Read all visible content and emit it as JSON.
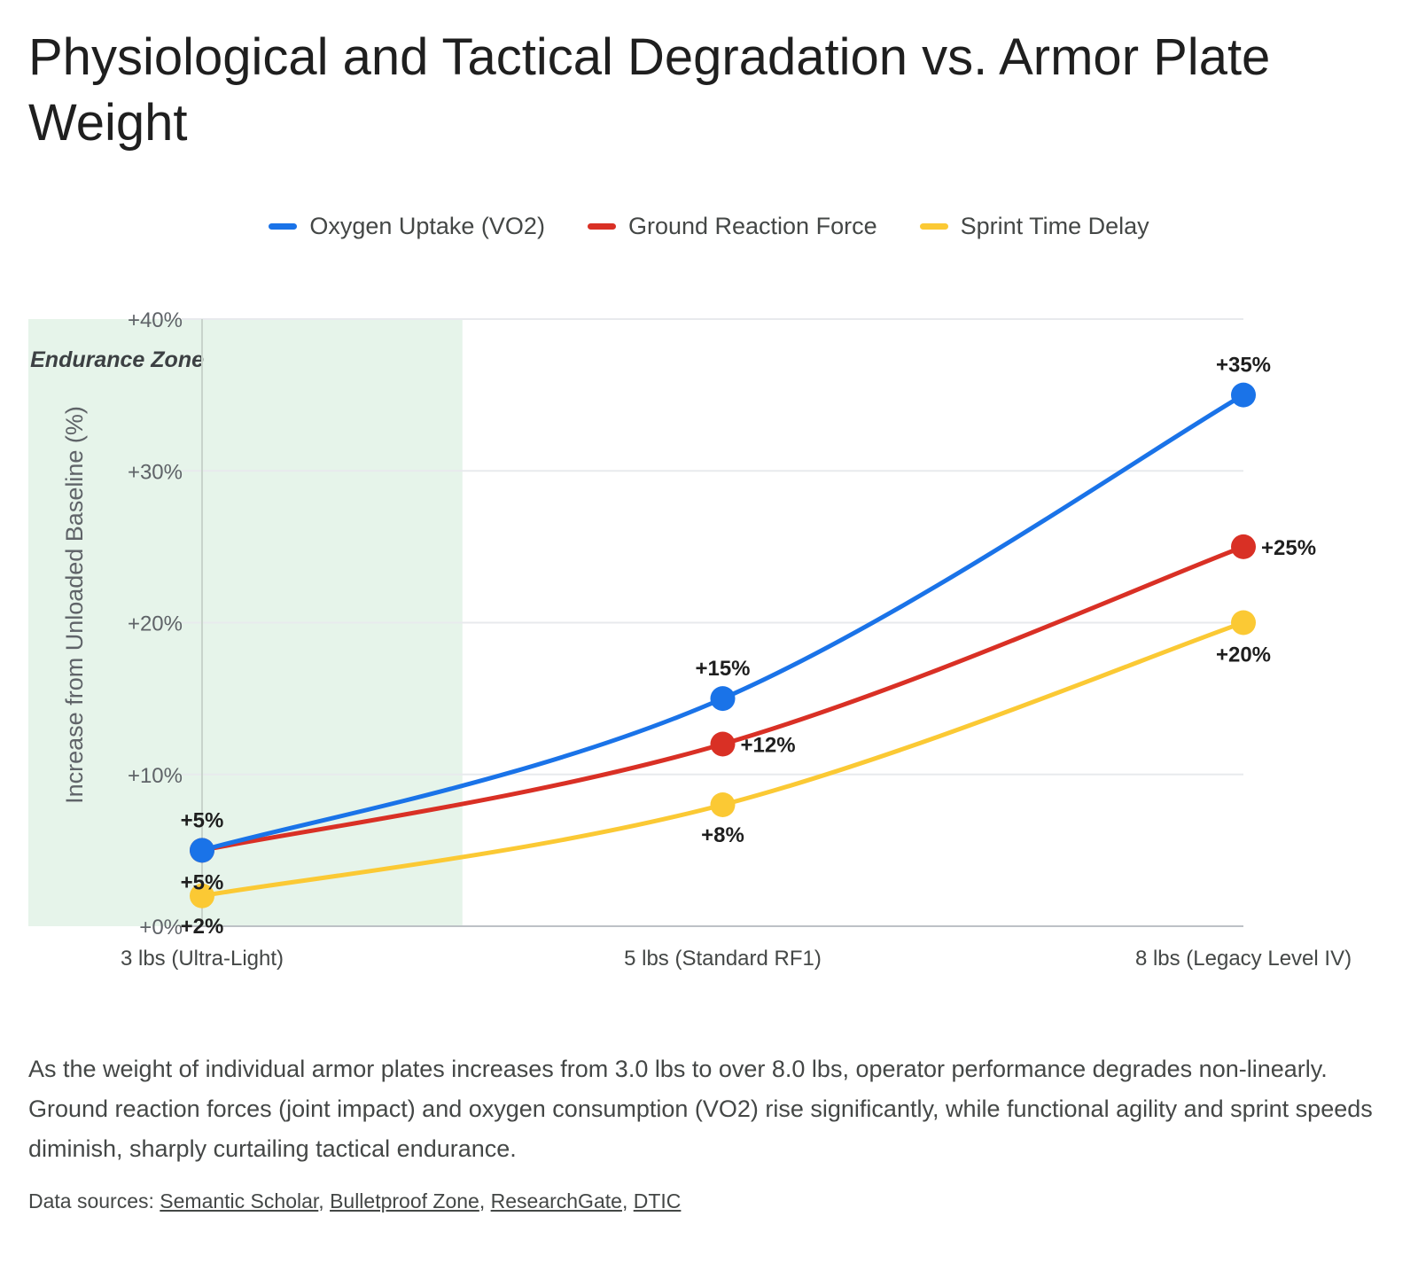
{
  "title": "Physiological and Tactical Degradation vs. Armor Plate Weight",
  "description": "As the weight of individual armor plates increases from 3.0 lbs to over 8.0 lbs, operator performance degrades non-linearly. Ground reaction forces (joint impact) and oxygen consumption (VO2) rise significantly, while functional agility and sprint speeds diminish, sharply curtailing tactical endurance.",
  "sources": {
    "label": "Data sources:",
    "links": [
      "Semantic Scholar",
      "Bulletproof Zone",
      "ResearchGate",
      "DTIC"
    ]
  },
  "chart_data": {
    "type": "line",
    "title": "Physiological and Tactical Degradation vs. Armor Plate Weight",
    "ylabel": "Increase from Unloaded Baseline (%)",
    "xlabel": "",
    "categories": [
      "3 lbs (Ultra-Light)",
      "5 lbs (Standard RF1)",
      "8 lbs (Legacy Level IV)"
    ],
    "ylim": [
      0,
      40
    ],
    "yticks": [
      {
        "value": 0,
        "label": "+0%"
      },
      {
        "value": 10,
        "label": "+10%"
      },
      {
        "value": 20,
        "label": "+20%"
      },
      {
        "value": 30,
        "label": "+30%"
      },
      {
        "value": 40,
        "label": "+40%"
      }
    ],
    "grid": true,
    "legend_position": "top",
    "zone": {
      "label": "Optimal Endurance Zone",
      "x_start": 0,
      "x_end": 0.5,
      "color": "#e6f4ea"
    },
    "series": [
      {
        "name": "Oxygen Uptake (VO2)",
        "color": "#1a73e8",
        "values": [
          5,
          15,
          35
        ],
        "labels": [
          "+5%",
          "+15%",
          "+35%"
        ]
      },
      {
        "name": "Ground Reaction Force",
        "color": "#d93025",
        "values": [
          5,
          12,
          25
        ],
        "labels": [
          "+5%",
          "+12%",
          "+25%"
        ]
      },
      {
        "name": "Sprint Time Delay",
        "color": "#fbc934",
        "values": [
          2,
          8,
          20
        ],
        "labels": [
          "+2%",
          "+8%",
          "+20%"
        ]
      }
    ]
  }
}
